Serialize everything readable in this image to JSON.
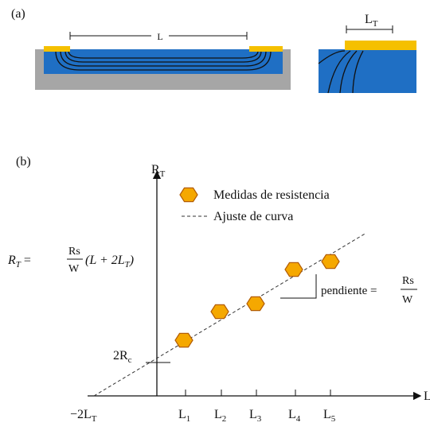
{
  "panel_a": {
    "label": "(a)",
    "length_label": "L",
    "transfer_label": {
      "base": "L",
      "sub": "T"
    }
  },
  "panel_b": {
    "label": "(b)",
    "y_axis": {
      "base": "R",
      "sub": "T"
    },
    "x_axis": "L",
    "legend": {
      "points": "Medidas de resistencia",
      "fit": "Ajuste de curva"
    },
    "formula": {
      "lhs": {
        "base": "R",
        "sub": "T"
      },
      "eq": "=",
      "num": "Rs",
      "den": "W",
      "rest": "(L + 2L",
      "rest_sub": "T",
      "close": ")"
    },
    "slope": {
      "text": "pendiente =",
      "num": "Rs",
      "den": "W"
    },
    "intercept": {
      "base": "2R",
      "sub": "c"
    },
    "x_intercept": {
      "base": "−2L",
      "sub": "T"
    },
    "x_ticks": [
      {
        "base": "L",
        "sub": "1"
      },
      {
        "base": "L",
        "sub": "2"
      },
      {
        "base": "L",
        "sub": "3"
      },
      {
        "base": "L",
        "sub": "4"
      },
      {
        "base": "L",
        "sub": "5"
      }
    ]
  }
}
